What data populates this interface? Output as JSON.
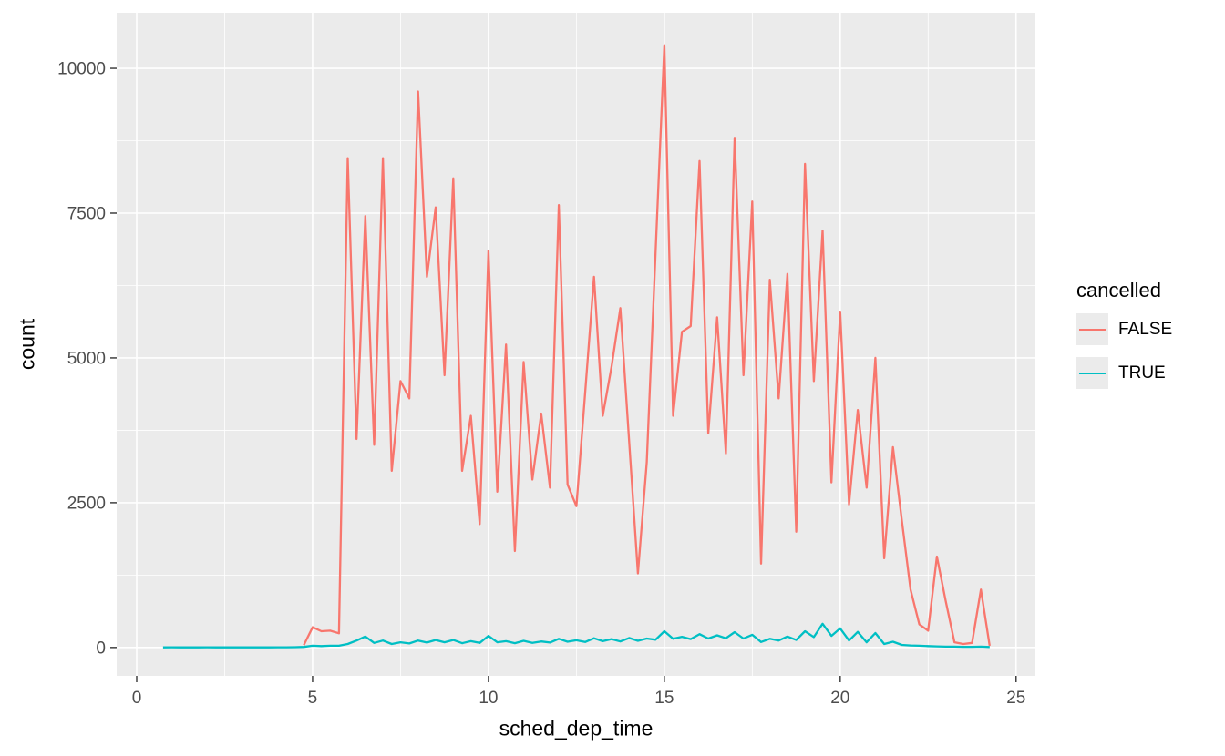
{
  "figure": {
    "background": "#FFFFFF",
    "panel_background": "#EBEBEB",
    "grid_color": "#FFFFFF",
    "tick_color": "#333333",
    "tick_label_color": "#4D4D4D",
    "title_color": "#000000"
  },
  "legend": {
    "title": "cancelled",
    "items": [
      {
        "label": "FALSE",
        "color": "#F8766D"
      },
      {
        "label": "TRUE",
        "color": "#00BFC4"
      }
    ]
  },
  "chart_data": {
    "type": "line",
    "title": "",
    "xlabel": "sched_dep_time",
    "ylabel": "count",
    "legend_title": "cancelled",
    "legend_position": "right",
    "grid": true,
    "xlim": [
      -0.57,
      25.55
    ],
    "ylim": [
      -490,
      10960
    ],
    "x_ticks": [
      0,
      5,
      10,
      15,
      20,
      25
    ],
    "y_ticks": [
      0,
      2500,
      5000,
      7500,
      10000
    ],
    "x_minor_ticks": [
      2.5,
      7.5,
      12.5,
      17.5,
      22.5
    ],
    "y_minor_ticks": [
      1250,
      3750,
      6250,
      8750
    ],
    "bin_width": 0.25,
    "series": [
      {
        "name": "FALSE",
        "color": "#F8766D",
        "x": [
          4.75,
          5,
          5.25,
          5.5,
          5.75,
          6,
          6.25,
          6.5,
          6.75,
          7,
          7.25,
          7.5,
          7.75,
          8,
          8.25,
          8.5,
          8.75,
          9,
          9.25,
          9.5,
          9.75,
          10,
          10.25,
          10.5,
          10.75,
          11,
          11.25,
          11.5,
          11.75,
          12,
          12.25,
          12.5,
          12.75,
          13,
          13.25,
          13.5,
          13.75,
          14,
          14.25,
          14.5,
          14.75,
          15,
          15.25,
          15.5,
          15.75,
          16,
          16.25,
          16.5,
          16.75,
          17,
          17.25,
          17.5,
          17.75,
          18,
          18.25,
          18.5,
          18.75,
          19,
          19.25,
          19.5,
          19.75,
          20,
          20.25,
          20.5,
          20.75,
          21,
          21.25,
          21.5,
          21.75,
          22,
          22.25,
          22.5,
          22.75,
          23,
          23.25,
          23.5,
          23.75,
          24,
          24.25
        ],
        "y": [
          40,
          350,
          280,
          290,
          245,
          8450,
          3600,
          7450,
          3500,
          8450,
          3050,
          4600,
          4300,
          9600,
          6400,
          7600,
          4700,
          8100,
          3050,
          4000,
          2130,
          6850,
          2690,
          5230,
          1665,
          4930,
          2900,
          4040,
          2760,
          7640,
          2815,
          2440,
          4400,
          6400,
          4000,
          4850,
          5860,
          3550,
          1280,
          3200,
          6800,
          10400,
          4000,
          5450,
          5550,
          8400,
          3700,
          5700,
          3350,
          8800,
          4700,
          7700,
          1450,
          6350,
          4300,
          6450,
          2000,
          8350,
          4600,
          7200,
          2850,
          5800,
          2470,
          4100,
          2760,
          5000,
          1540,
          3460,
          2200,
          1000,
          400,
          290,
          1570,
          800,
          90,
          60,
          80,
          1000,
          30
        ]
      },
      {
        "name": "TRUE",
        "color": "#00BFC4",
        "x": [
          0.75,
          1,
          1.25,
          1.5,
          1.75,
          2,
          2.25,
          2.5,
          2.75,
          3,
          3.25,
          3.5,
          3.75,
          4,
          4.25,
          4.5,
          4.75,
          5,
          5.25,
          5.5,
          5.75,
          6,
          6.25,
          6.5,
          6.75,
          7,
          7.25,
          7.5,
          7.75,
          8,
          8.25,
          8.5,
          8.75,
          9,
          9.25,
          9.5,
          9.75,
          10,
          10.25,
          10.5,
          10.75,
          11,
          11.25,
          11.5,
          11.75,
          12,
          12.25,
          12.5,
          12.75,
          13,
          13.25,
          13.5,
          13.75,
          14,
          14.25,
          14.5,
          14.75,
          15,
          15.25,
          15.5,
          15.75,
          16,
          16.25,
          16.5,
          16.75,
          17,
          17.25,
          17.5,
          17.75,
          18,
          18.25,
          18.5,
          18.75,
          19,
          19.25,
          19.5,
          19.75,
          20,
          20.25,
          20.5,
          20.75,
          21,
          21.25,
          21.5,
          21.75,
          22,
          22.25,
          22.5,
          22.75,
          23,
          23.25,
          23.5,
          23.75,
          24,
          24.25
        ],
        "y": [
          3,
          4,
          3,
          3,
          3,
          4,
          3,
          3,
          3,
          3,
          3,
          3,
          3,
          4,
          4,
          5,
          10,
          30,
          25,
          30,
          30,
          60,
          120,
          190,
          80,
          120,
          60,
          90,
          70,
          120,
          85,
          130,
          90,
          130,
          75,
          110,
          80,
          200,
          90,
          110,
          75,
          115,
          80,
          105,
          85,
          150,
          100,
          125,
          95,
          160,
          110,
          145,
          105,
          165,
          115,
          155,
          135,
          280,
          150,
          185,
          145,
          230,
          155,
          210,
          160,
          265,
          155,
          220,
          95,
          150,
          120,
          190,
          130,
          280,
          180,
          410,
          200,
          330,
          120,
          270,
          90,
          250,
          60,
          100,
          45,
          35,
          30,
          25,
          20,
          15,
          15,
          12,
          12,
          15,
          8
        ]
      }
    ]
  }
}
